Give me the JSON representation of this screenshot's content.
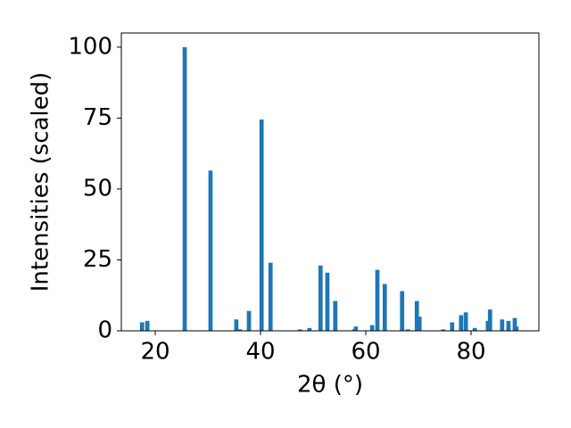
{
  "chart_data": {
    "type": "bar",
    "xlabel": "2θ (°)",
    "ylabel": "Intensities (scaled)",
    "x": [
      17.5,
      18.5,
      25.6,
      30.5,
      35.4,
      36.1,
      37.8,
      40.2,
      41.9,
      47.5,
      49.3,
      51.4,
      52.7,
      54.2,
      57.8,
      58.1,
      61.2,
      62.2,
      63.6,
      66.9,
      68.0,
      69.7,
      70.2,
      74.7,
      76.4,
      78.1,
      79.0,
      80.7,
      83.2,
      83.6,
      85.9,
      87.1,
      88.3,
      88.6
    ],
    "values": [
      3,
      3.5,
      100,
      56.5,
      4,
      0.5,
      7,
      74.5,
      24,
      0.5,
      1,
      23,
      20.5,
      10.5,
      0.5,
      1.5,
      2,
      21.5,
      16.5,
      14,
      0.5,
      10.5,
      5,
      0.5,
      3,
      5.5,
      6.5,
      1,
      3.5,
      7.5,
      4,
      3.5,
      4.5,
      1.5
    ],
    "color": "#1f77b4",
    "xlim": [
      13.56,
      92.88
    ],
    "xticks": [
      20,
      40,
      60,
      80
    ],
    "ylim": [
      0,
      105
    ],
    "yticks": [
      0,
      25,
      50,
      75,
      100
    ]
  }
}
